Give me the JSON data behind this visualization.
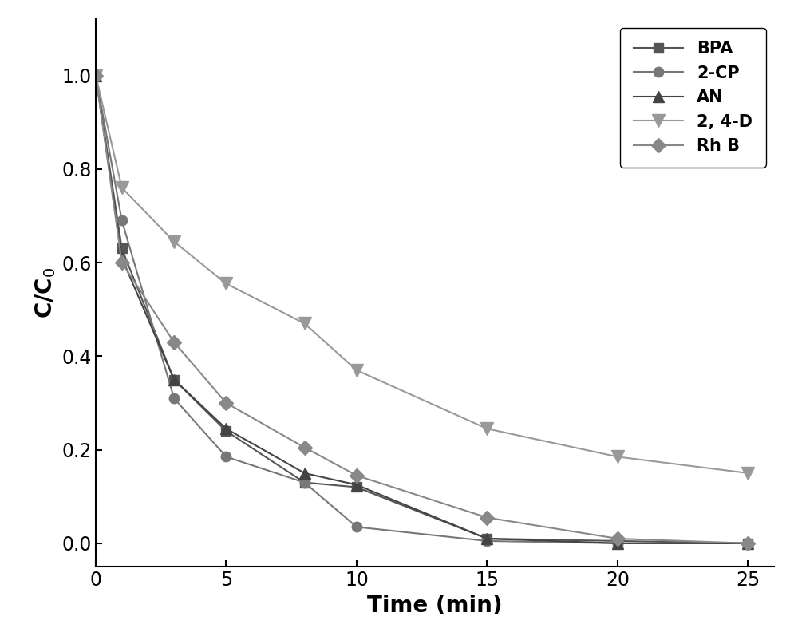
{
  "series": {
    "BPA": {
      "x": [
        0,
        1,
        3,
        5,
        8,
        10,
        15,
        20,
        25
      ],
      "y": [
        1.0,
        0.63,
        0.35,
        0.24,
        0.13,
        0.12,
        0.01,
        0.005,
        0.0
      ],
      "color": "#555555",
      "marker": "s",
      "markersize": 9,
      "label": "BPA"
    },
    "2-CP": {
      "x": [
        0,
        1,
        3,
        5,
        8,
        10,
        15,
        20,
        25
      ],
      "y": [
        1.0,
        0.69,
        0.31,
        0.185,
        0.13,
        0.035,
        0.005,
        0.0,
        0.0
      ],
      "color": "#777777",
      "marker": "o",
      "markersize": 9,
      "label": "2-CP"
    },
    "AN": {
      "x": [
        0,
        1,
        3,
        5,
        8,
        10,
        15,
        20,
        25
      ],
      "y": [
        1.0,
        0.61,
        0.35,
        0.245,
        0.15,
        0.125,
        0.01,
        0.0,
        0.0
      ],
      "color": "#444444",
      "marker": "^",
      "markersize": 10,
      "label": "AN"
    },
    "2,4-D": {
      "x": [
        0,
        1,
        3,
        5,
        8,
        10,
        15,
        20,
        25
      ],
      "y": [
        1.0,
        0.76,
        0.645,
        0.555,
        0.47,
        0.37,
        0.245,
        0.185,
        0.15
      ],
      "color": "#999999",
      "marker": "v",
      "markersize": 11,
      "label": "2, 4-D"
    },
    "RhB": {
      "x": [
        0,
        1,
        3,
        5,
        8,
        10,
        15,
        20,
        25
      ],
      "y": [
        1.0,
        0.6,
        0.43,
        0.3,
        0.205,
        0.145,
        0.055,
        0.01,
        0.0
      ],
      "color": "#888888",
      "marker": "D",
      "markersize": 9,
      "label": "Rh B"
    }
  },
  "xlabel": "Time (min)",
  "ylabel": "C/C$_0$",
  "xlim": [
    0,
    26
  ],
  "ylim": [
    -0.05,
    1.12
  ],
  "xticks": [
    0,
    5,
    10,
    15,
    20,
    25
  ],
  "yticks": [
    0.0,
    0.2,
    0.4,
    0.6,
    0.8,
    1.0
  ],
  "legend_fontsize": 15,
  "axis_label_fontsize": 20,
  "tick_fontsize": 17,
  "linewidth": 1.5,
  "linestyle": "-",
  "figure_width": 10.0,
  "figure_height": 8.07,
  "dpi": 100
}
